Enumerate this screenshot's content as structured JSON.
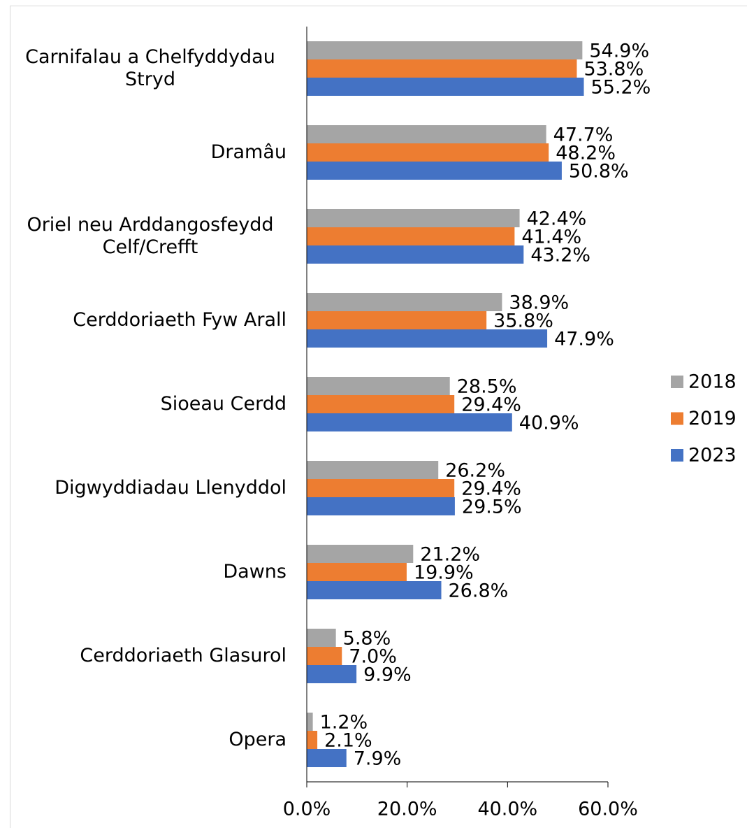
{
  "chart_data": {
    "type": "hbar",
    "categories": [
      "Carnifalau a Chelfyddydau Stryd",
      "Dramâu",
      "Oriel neu Arddangosfeydd Celf/Crefft",
      "Cerddoriaeth Fyw Arall",
      "Sioeau Cerdd",
      "Digwyddiadau Llenyddol",
      "Dawns",
      "Cerddoriaeth Glasurol",
      "Opera"
    ],
    "series": [
      {
        "name": "2018",
        "color": "#a5a5a5",
        "values": [
          54.9,
          47.7,
          42.4,
          38.9,
          28.5,
          26.2,
          21.2,
          5.8,
          1.2
        ],
        "value_labels": [
          "54.9%",
          "47.7%",
          "42.4%",
          "38.9%",
          "28.5%",
          "26.2%",
          "21.2%",
          "5.8%",
          "1.2%"
        ]
      },
      {
        "name": "2019",
        "color": "#ed7d31",
        "values": [
          53.8,
          48.2,
          41.4,
          35.8,
          29.4,
          29.4,
          19.9,
          7.0,
          2.1
        ],
        "value_labels": [
          "53.8%",
          "48.2%",
          "41.4%",
          "35.8%",
          "29.4%",
          "29.4%",
          "19.9%",
          "7.0%",
          "2.1%"
        ]
      },
      {
        "name": "2023",
        "color": "#4472c4",
        "values": [
          55.2,
          50.8,
          43.2,
          47.9,
          40.9,
          29.5,
          26.8,
          9.9,
          7.9
        ],
        "value_labels": [
          "55.2%",
          "50.8%",
          "43.2%",
          "47.9%",
          "40.9%",
          "29.5%",
          "26.8%",
          "9.9%",
          "7.9%"
        ]
      }
    ],
    "xlim": [
      0,
      60
    ],
    "xticks": [
      {
        "value": 0,
        "label": "0.0%"
      },
      {
        "value": 20,
        "label": "20.0%"
      },
      {
        "value": 40,
        "label": "40.0%"
      },
      {
        "value": 60,
        "label": "60.0%"
      }
    ],
    "legend": "right"
  }
}
